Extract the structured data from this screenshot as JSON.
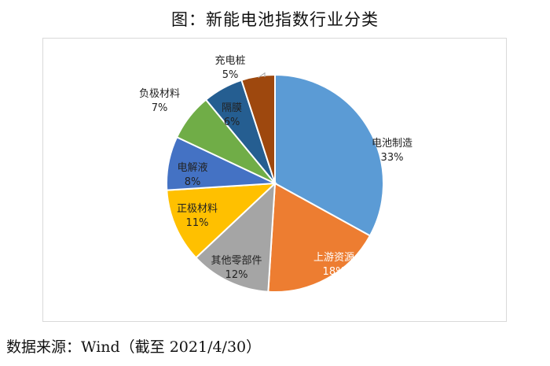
{
  "title": "图：新能电池指数行业分类",
  "source": "数据来源：Wind（截至 2021/4/30）",
  "chart_data": {
    "type": "pie",
    "title": "",
    "slices": [
      {
        "label": "电池制造",
        "value": 33,
        "value_label": "33%",
        "color": "#5b9bd5"
      },
      {
        "label": "上游资源",
        "value": 18,
        "value_label": "18%",
        "color": "#ed7d31"
      },
      {
        "label": "其他零部件",
        "value": 12,
        "value_label": "12%",
        "color": "#a5a5a5"
      },
      {
        "label": "正极材料",
        "value": 11,
        "value_label": "11%",
        "color": "#ffc000"
      },
      {
        "label": "电解液",
        "value": 8,
        "value_label": "8%",
        "color": "#4472c4"
      },
      {
        "label": "负极材料",
        "value": 7,
        "value_label": "7%",
        "color": "#70ad47"
      },
      {
        "label": "隔膜",
        "value": 6,
        "value_label": "6%",
        "color": "#255e91"
      },
      {
        "label": "充电桩",
        "value": 5,
        "value_label": "5%",
        "color": "#9e480e"
      }
    ],
    "start_angle_deg": 0,
    "direction": "clockwise",
    "legend": "none"
  }
}
